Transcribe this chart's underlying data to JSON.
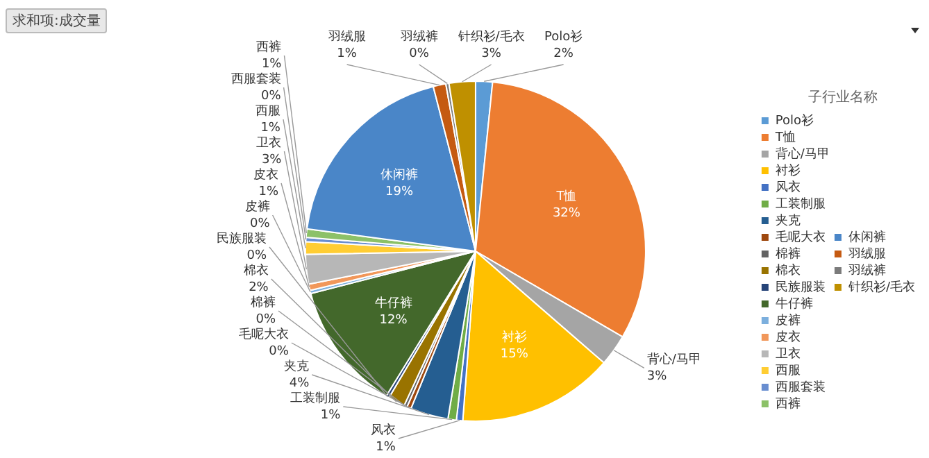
{
  "chart_data": {
    "type": "pie",
    "title": "求和项:成交量",
    "legend_title": "子行业名称",
    "legend": "right",
    "categories": [
      "Polo衫",
      "T恤",
      "背心/马甲",
      "衬衫",
      "风衣",
      "工装制服",
      "夹克",
      "毛呢大衣",
      "棉裤",
      "棉衣",
      "民族服装",
      "牛仔裤",
      "皮裤",
      "皮衣",
      "卫衣",
      "西服",
      "西服套装",
      "西裤",
      "休闲裤",
      "羽绒服",
      "羽绒裤",
      "针织衫/毛衣"
    ],
    "values": [
      1.6,
      31.8,
      3.0,
      14.8,
      0.6,
      0.8,
      3.6,
      0.4,
      0.3,
      1.6,
      0.3,
      12.2,
      0.3,
      0.6,
      2.8,
      1.2,
      0.4,
      0.8,
      18.9,
      1.2,
      0.3,
      2.5
    ],
    "value_labels": [
      "2%",
      "32%",
      "3%",
      "15%",
      "1%",
      "1%",
      "4%",
      "0%",
      "0%",
      "2%",
      "0%",
      "12%",
      "0%",
      "1%",
      "3%",
      "1%",
      "0%",
      "1%",
      "19%",
      "1%",
      "0%",
      "3%"
    ],
    "colors": [
      "#5b9bd5",
      "#ed7d31",
      "#a5a5a5",
      "#ffc000",
      "#4472c4",
      "#70ad47",
      "#255e91",
      "#9e480e",
      "#636363",
      "#997300",
      "#264478",
      "#43682b",
      "#7cafdd",
      "#f1975a",
      "#b7b7b7",
      "#ffcd33",
      "#698ed0",
      "#8cc168",
      "#4a86c8",
      "#c55a11",
      "#7b7b7b",
      "#bf9000"
    ]
  }
}
